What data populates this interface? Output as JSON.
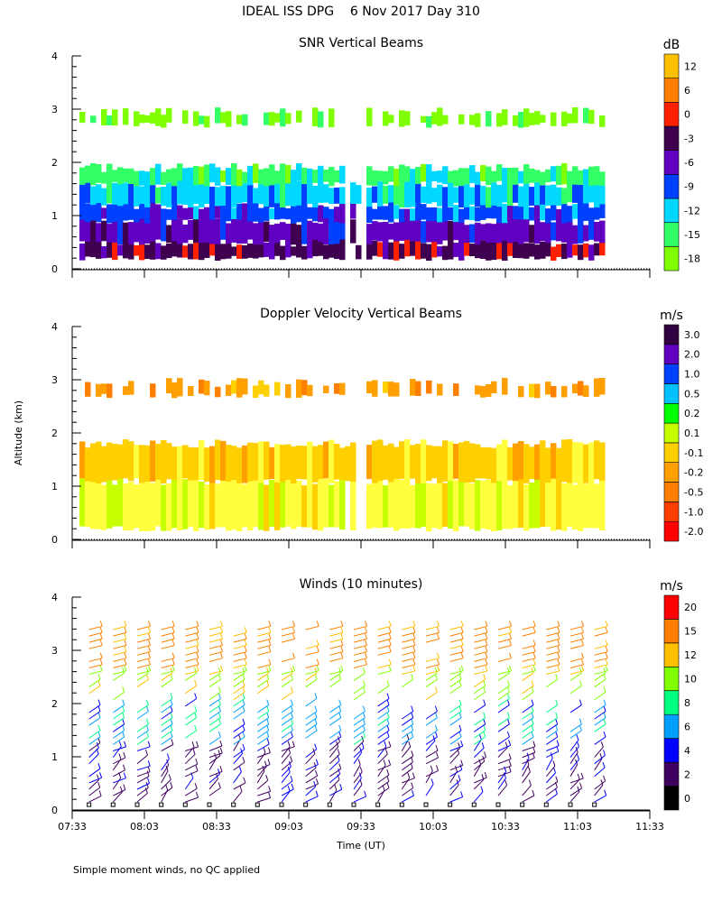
{
  "title": "IDEAL ISS DPG    6 Nov 2017 Day 310",
  "footnote": "Simple moment winds, no QC applied",
  "colors": {
    "axis": "#000000",
    "snr_scale": [
      "#80ff00",
      "#33ff66",
      "#00d8ff",
      "#0040ff",
      "#6000c0",
      "#400050",
      "#ff2000",
      "#ff8000",
      "#ffc000"
    ],
    "doppler_scale": [
      "#ff0000",
      "#ff4000",
      "#ff8000",
      "#ffa000",
      "#ffd000",
      "#ffff40",
      "#c8ff00",
      "#00ff00",
      "#00c0ff",
      "#0040ff",
      "#6000c0",
      "#300040"
    ],
    "wind_scale": [
      "#000000",
      "#400060",
      "#0000ff",
      "#00a0ff",
      "#00ff80",
      "#80ff00",
      "#ffc000",
      "#ff8000",
      "#ff0000"
    ]
  },
  "chart_data": [
    {
      "type": "heatmap",
      "title": "SNR Vertical Beams",
      "ylabel": "",
      "ylim": [
        0,
        4
      ],
      "yticks": [
        "0",
        "1",
        "2",
        "3",
        "4"
      ],
      "xlim": [
        "07:33",
        "11:33"
      ],
      "colorbar_unit": "dB",
      "colorbar_labels": [
        "-18",
        "-15",
        "-12",
        "-9",
        "-6",
        "-3",
        "0",
        "6",
        "12"
      ],
      "layers": [
        {
          "alt_from": 0.2,
          "alt_to": 0.5,
          "level": "-3"
        },
        {
          "alt_from": 0.5,
          "alt_to": 0.9,
          "level": "-6"
        },
        {
          "alt_from": 0.9,
          "alt_to": 1.2,
          "level": "-9"
        },
        {
          "alt_from": 1.2,
          "alt_to": 1.6,
          "level": "-12"
        },
        {
          "alt_from": 1.6,
          "alt_to": 1.9,
          "level": "-15"
        },
        {
          "alt_from": 2.7,
          "alt_to": 2.95,
          "level": "-18"
        }
      ]
    },
    {
      "type": "heatmap",
      "title": "Doppler Velocity Vertical Beams",
      "ylabel": "Altitude (km)",
      "ylim": [
        0,
        4
      ],
      "yticks": [
        "0",
        "1",
        "2",
        "3",
        "4"
      ],
      "xlim": [
        "07:33",
        "11:33"
      ],
      "colorbar_unit": "m/s",
      "colorbar_labels": [
        "-2.0",
        "-1.0",
        "-0.5",
        "-0.2",
        "-0.1",
        "0.1",
        "0.2",
        "0.5",
        "1.0",
        "2.0",
        "3.0"
      ],
      "layers": [
        {
          "alt_from": 0.2,
          "alt_to": 1.1,
          "level": "0.1"
        },
        {
          "alt_from": 1.1,
          "alt_to": 1.8,
          "level": "-0.1"
        },
        {
          "alt_from": 2.7,
          "alt_to": 2.95,
          "level": "-0.2"
        }
      ]
    },
    {
      "type": "scatter",
      "title": "Winds (10 minutes)",
      "xlabel": "Time (UT)",
      "ylabel": "",
      "ylim": [
        0,
        4
      ],
      "yticks": [
        "0",
        "1",
        "2",
        "3",
        "4"
      ],
      "x": [
        "07:33",
        "08:03",
        "08:33",
        "09:03",
        "09:33",
        "10:03",
        "10:33",
        "11:03",
        "11:33"
      ],
      "colorbar_unit": "m/s",
      "colorbar_labels": [
        "0",
        "2",
        "4",
        "6",
        "8",
        "10",
        "12",
        "15",
        "20"
      ]
    }
  ]
}
